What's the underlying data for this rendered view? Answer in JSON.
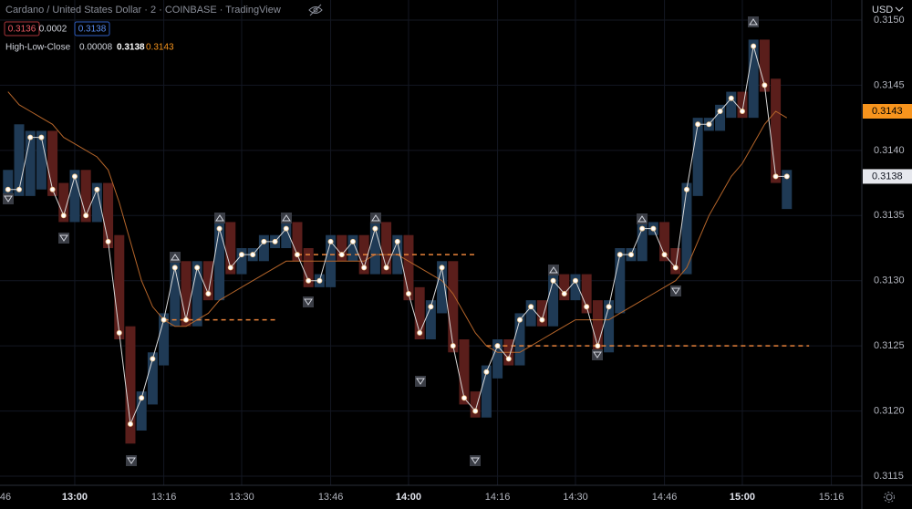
{
  "header": {
    "title": "Cardano / United States Dollar · 2 · COINBASE · TradingView",
    "bid": 0.3136,
    "spread": 0.0002,
    "ask": 0.3138
  },
  "chart_data": {
    "type": "hlc",
    "currency": "USD",
    "indicator": {
      "name": "High-Low-Close",
      "values": [
        8e-05,
        0.3138,
        0.3143
      ]
    },
    "xlim": [
      -0.72,
      76.74
    ],
    "xticks": [
      {
        "value": -1,
        "label": "46"
      },
      {
        "value": 6,
        "label": "13:00"
      },
      {
        "value": 14,
        "label": "13:16"
      },
      {
        "value": 21,
        "label": "13:30"
      },
      {
        "value": 29,
        "label": "13:46"
      },
      {
        "value": 36,
        "label": "14:00"
      },
      {
        "value": 44,
        "label": "14:16"
      },
      {
        "value": 51,
        "label": "14:30"
      },
      {
        "value": 59,
        "label": "14:46"
      },
      {
        "value": 66,
        "label": "15:00"
      },
      {
        "value": 74,
        "label": "15:16"
      }
    ],
    "ylim": [
      0.31143,
      0.315154
    ],
    "yticks": [
      0.3115,
      {
        "value": 0.312,
        "label": "0.3120"
      },
      0.3125,
      {
        "value": 0.313,
        "label": "0.3130"
      },
      0.3135,
      {
        "value": 0.314,
        "label": "0.3140"
      },
      0.3145,
      {
        "value": 0.315,
        "label": "0.3150"
      }
    ],
    "grid": true,
    "up_color": "#1f3a55",
    "down_color": "#5a1e1b",
    "close_color": "#ffffff",
    "average_color": "#b5652a",
    "level_color": "#e8823a",
    "high": [
      0.31385,
      0.3142,
      0.31415,
      0.31415,
      0.31415,
      0.31375,
      0.31385,
      0.31385,
      0.31375,
      0.31375,
      0.31335,
      0.31265,
      0.31215,
      0.31245,
      0.31275,
      0.31315,
      0.31315,
      0.31315,
      0.31315,
      0.31345,
      0.31345,
      0.31325,
      0.31325,
      0.31335,
      0.31335,
      0.31345,
      0.31345,
      0.31325,
      0.31305,
      0.31335,
      0.31335,
      0.31335,
      0.31335,
      0.31345,
      0.31345,
      0.31335,
      0.31335,
      0.31295,
      0.31285,
      0.31315,
      0.31315,
      0.31255,
      0.31215,
      0.31235,
      0.31255,
      0.31255,
      0.31275,
      0.31285,
      0.31285,
      0.31305,
      0.31305,
      0.31305,
      0.31305,
      0.31285,
      0.31285,
      0.31325,
      0.31325,
      0.31345,
      0.31345,
      0.31345,
      0.31325,
      0.31375,
      0.31425,
      0.31425,
      0.31435,
      0.31445,
      0.31445,
      0.31485,
      0.31485,
      0.31455,
      0.31385
    ],
    "low": [
      0.31365,
      0.31365,
      0.31365,
      0.3137,
      0.31365,
      0.31345,
      0.31345,
      0.31345,
      0.31345,
      0.31325,
      0.31255,
      0.31175,
      0.31185,
      0.31205,
      0.31235,
      0.31265,
      0.31265,
      0.31265,
      0.31285,
      0.31285,
      0.31305,
      0.31305,
      0.31315,
      0.31315,
      0.31325,
      0.31325,
      0.31315,
      0.31295,
      0.31295,
      0.31295,
      0.31315,
      0.31315,
      0.31305,
      0.31305,
      0.31305,
      0.31305,
      0.31285,
      0.31255,
      0.31255,
      0.31275,
      0.31245,
      0.31205,
      0.31195,
      0.31195,
      0.31225,
      0.31235,
      0.31235,
      0.31265,
      0.31265,
      0.31265,
      0.31285,
      0.31285,
      0.31275,
      0.31245,
      0.31245,
      0.31275,
      0.31315,
      0.31315,
      0.31335,
      0.31315,
      0.31305,
      0.31305,
      0.31365,
      0.31415,
      0.31415,
      0.31425,
      0.31425,
      0.31425,
      0.31445,
      0.31375,
      0.31355
    ],
    "close": [
      0.3137,
      0.3137,
      0.3141,
      0.3141,
      0.3137,
      0.3135,
      0.3138,
      0.3135,
      0.3137,
      0.3133,
      0.3126,
      0.3119,
      0.3121,
      0.3124,
      0.3127,
      0.3131,
      0.3127,
      0.3131,
      0.3129,
      0.3134,
      0.3131,
      0.3132,
      0.3132,
      0.3133,
      0.3133,
      0.3134,
      0.3132,
      0.313,
      0.313,
      0.3133,
      0.3132,
      0.3133,
      0.3131,
      0.3134,
      0.3131,
      0.3133,
      0.3129,
      0.3126,
      0.3128,
      0.3131,
      0.3125,
      0.3121,
      0.312,
      0.3123,
      0.3125,
      0.3124,
      0.3127,
      0.3128,
      0.3127,
      0.313,
      0.3129,
      0.313,
      0.3128,
      0.3125,
      0.3128,
      0.3132,
      0.3132,
      0.3134,
      0.3134,
      0.3132,
      0.3131,
      0.3137,
      0.3142,
      0.3142,
      0.3143,
      0.3144,
      0.3143,
      0.3148,
      0.3145,
      0.3138,
      0.3138
    ],
    "average": [
      0.31445,
      0.31435,
      0.3143,
      0.31425,
      0.3142,
      0.3141,
      0.31405,
      0.314,
      0.31395,
      0.31385,
      0.3136,
      0.3133,
      0.313,
      0.3128,
      0.3127,
      0.31265,
      0.31265,
      0.3127,
      0.31275,
      0.31285,
      0.3129,
      0.31295,
      0.313,
      0.31305,
      0.3131,
      0.31315,
      0.31315,
      0.31315,
      0.31315,
      0.31315,
      0.31315,
      0.31315,
      0.31315,
      0.3132,
      0.3132,
      0.3132,
      0.31315,
      0.3131,
      0.31305,
      0.313,
      0.3129,
      0.31275,
      0.3126,
      0.3125,
      0.31245,
      0.31245,
      0.31245,
      0.3125,
      0.31255,
      0.3126,
      0.31265,
      0.3127,
      0.3127,
      0.3127,
      0.3127,
      0.31275,
      0.3128,
      0.31285,
      0.3129,
      0.31295,
      0.313,
      0.3131,
      0.3133,
      0.3135,
      0.31365,
      0.3138,
      0.3139,
      0.31405,
      0.3142,
      0.3143,
      0.31425
    ],
    "levels": [
      {
        "value": 0.3127,
        "from": 14,
        "to": 24
      },
      {
        "value": 0.3132,
        "from": 26,
        "to": 42
      },
      {
        "value": 0.3125,
        "from": 43,
        "to": 72
      }
    ],
    "price_tags": [
      {
        "value": 0.3143,
        "color": "#f7941d"
      },
      {
        "value": 0.3138,
        "color": "#e6e8ee"
      }
    ]
  }
}
